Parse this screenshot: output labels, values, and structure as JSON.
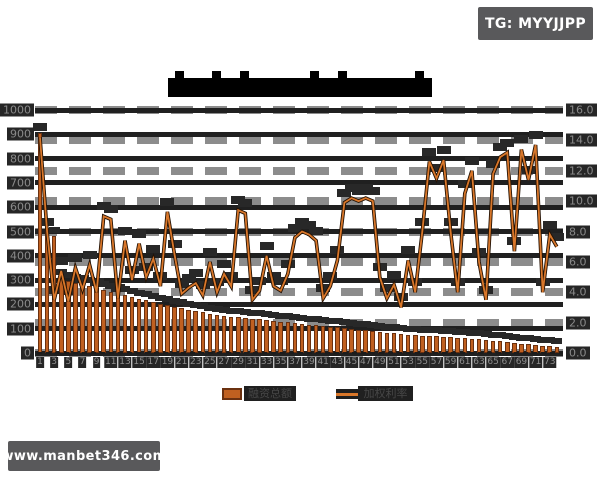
{
  "tg_badge": {
    "label": "TG: MYYJJPP"
  },
  "site_badge": {
    "label": "www.manbet346.com"
  },
  "title": {
    "blocks": "██████████████████████████"
  },
  "legend": {
    "bar_item_label": "融资总额",
    "line_item_label": "加权利率"
  },
  "colors": {
    "background": "#ffffff",
    "bar_fill": "#c06020",
    "bar_border": "#6b3110",
    "line": "#d9772a",
    "line_outline": "#241204",
    "grid_dark": "#202020",
    "grid_gray": "#8c8c8c",
    "label_box": "#262626",
    "label_text": "#8a8a8a",
    "badge_bg": "#59595b",
    "badge_text": "#ffffff",
    "tofu_label": "#282828"
  },
  "chart_data": {
    "type": "bar",
    "subtype": "combo-bar-line-dual-axis",
    "title": "(unreadable tofu-block chinese title)",
    "categories": [
      1,
      2,
      3,
      4,
      5,
      6,
      7,
      8,
      9,
      10,
      11,
      12,
      13,
      14,
      15,
      16,
      17,
      18,
      19,
      20,
      21,
      22,
      23,
      24,
      25,
      26,
      27,
      28,
      29,
      30,
      31,
      32,
      33,
      34,
      35,
      36,
      37,
      38,
      39,
      40,
      41,
      42,
      43,
      44,
      45,
      46,
      47,
      48,
      49,
      50,
      51,
      52,
      53,
      54,
      55,
      56,
      57,
      58,
      59,
      60,
      61,
      62,
      63,
      64,
      65,
      66,
      67,
      68,
      69,
      70,
      71,
      72,
      73,
      74
    ],
    "x_tick_labels": [
      "1",
      "3",
      "5",
      "7",
      "9",
      "11",
      "13",
      "15",
      "17",
      "19",
      "21",
      "23",
      "25",
      "27",
      "29",
      "31",
      "33",
      "35",
      "37",
      "39",
      "41",
      "43",
      "45",
      "47",
      "49",
      "51",
      "53",
      "55",
      "57",
      "59",
      "61",
      "63",
      "65",
      "67",
      "69",
      "71",
      "73"
    ],
    "left_axis": {
      "min": 0,
      "max": 1000,
      "step": 100,
      "ticks": [
        "0",
        "100",
        "200",
        "300",
        "400",
        "500",
        "600",
        "700",
        "800",
        "900",
        "1000"
      ]
    },
    "right_axis": {
      "min": 0,
      "max": 16,
      "step": 2,
      "ticks": [
        "0.0",
        "2.0",
        "4.0",
        "6.0",
        "8.0",
        "10.0",
        "12.0",
        "14.0",
        "16.0"
      ]
    },
    "grid": "both-axes-horizontal",
    "legend_position": "bottom",
    "series": [
      {
        "name": "融资总额",
        "type": "bar",
        "axis": "left",
        "values": [
          905,
          515,
          483,
          310,
          298,
          290,
          283,
          276,
          268,
          260,
          252,
          245,
          238,
          231,
          224,
          217,
          210,
          203,
          196,
          190,
          184,
          178,
          172,
          167,
          162,
          158,
          154,
          150,
          147,
          144,
          141,
          138,
          135,
          132,
          129,
          126,
          123,
          120,
          117,
          114,
          111,
          108,
          105,
          102,
          99,
          96,
          93,
          90,
          87,
          84,
          81,
          78,
          76,
          74,
          72,
          70,
          68,
          66,
          64,
          62,
          60,
          58,
          56,
          54,
          51,
          48,
          45,
          42,
          39,
          36,
          33,
          30,
          27,
          24
        ]
      },
      {
        "name": "加权利率",
        "type": "line",
        "axis": "right",
        "values": [
          14.2,
          8.0,
          3.5,
          5.4,
          3.4,
          5.6,
          4.2,
          5.8,
          4.0,
          9.0,
          8.8,
          3.6,
          7.4,
          4.8,
          7.2,
          5.0,
          6.2,
          4.4,
          9.3,
          6.5,
          3.9,
          4.3,
          4.6,
          3.8,
          6.0,
          4.0,
          5.2,
          4.4,
          9.4,
          9.2,
          3.5,
          4.1,
          6.4,
          4.4,
          4.1,
          5.2,
          7.6,
          8.0,
          7.8,
          7.4,
          3.6,
          4.4,
          6.1,
          9.9,
          10.2,
          10.0,
          10.2,
          10.0,
          5.0,
          3.6,
          4.5,
          3.0,
          6.1,
          4.0,
          8.0,
          12.6,
          11.5,
          12.7,
          8.0,
          4.0,
          10.5,
          12.0,
          6.0,
          3.5,
          11.8,
          12.9,
          13.2,
          6.7,
          13.4,
          11.4,
          13.7,
          4.0,
          7.8,
          7.0
        ]
      }
    ]
  }
}
